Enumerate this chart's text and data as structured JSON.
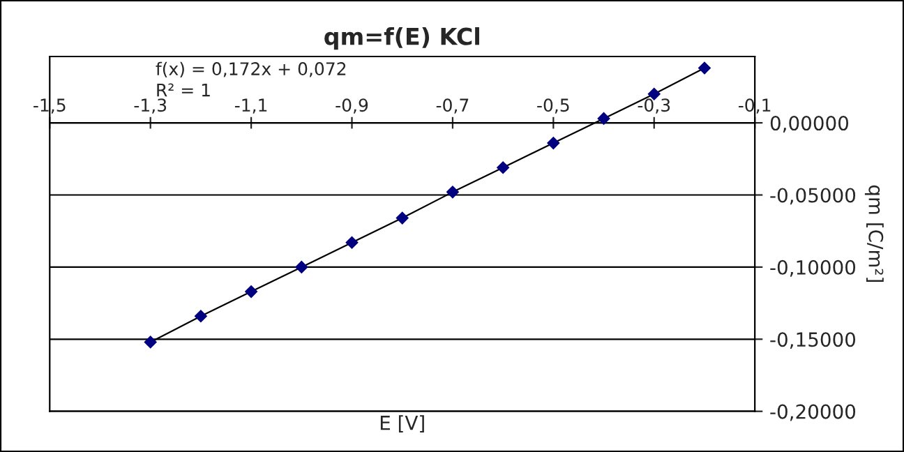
{
  "chart_data": {
    "type": "line",
    "title": "qm=f(E) KCl",
    "xlabel": "E [V]",
    "ylabel": "qm [C/m²]",
    "x": [
      -1.3,
      -1.2,
      -1.1,
      -1.0,
      -0.9,
      -0.8,
      -0.7,
      -0.6,
      -0.5,
      -0.4,
      -0.3,
      -0.2
    ],
    "series": [
      {
        "color": "#000080",
        "values": [
          -0.152,
          -0.134,
          -0.117,
          -0.1,
          -0.083,
          -0.066,
          -0.048,
          -0.031,
          -0.014,
          0.003,
          0.02,
          0.038
        ]
      }
    ],
    "xlim": [
      -1.5,
      -0.1
    ],
    "xticks": [
      {
        "value": -1.5,
        "label": "-1,5"
      },
      {
        "value": -1.3,
        "label": "-1,3"
      },
      {
        "value": -1.1,
        "label": "-1,1"
      },
      {
        "value": -0.9,
        "label": "-0,9"
      },
      {
        "value": -0.7,
        "label": "-0,7"
      },
      {
        "value": -0.5,
        "label": "-0,5"
      },
      {
        "value": -0.3,
        "label": "-0,3"
      },
      {
        "value": -0.1,
        "label": "-0,1"
      }
    ],
    "ylim": [
      -0.2,
      0.046
    ],
    "yticks": [
      {
        "value": -0.2,
        "label": "-0,20000"
      },
      {
        "value": -0.15,
        "label": "-0,15000"
      },
      {
        "value": -0.1,
        "label": "-0,10000"
      },
      {
        "value": -0.05,
        "label": "-0,05000"
      },
      {
        "value": 0,
        "label": "0,00000"
      }
    ],
    "annotations": [
      "f(x) = 0,172x + 0,072",
      "R² = 1"
    ],
    "grid": "y",
    "marker": "diamond",
    "line_style": "solid",
    "legend": false
  }
}
